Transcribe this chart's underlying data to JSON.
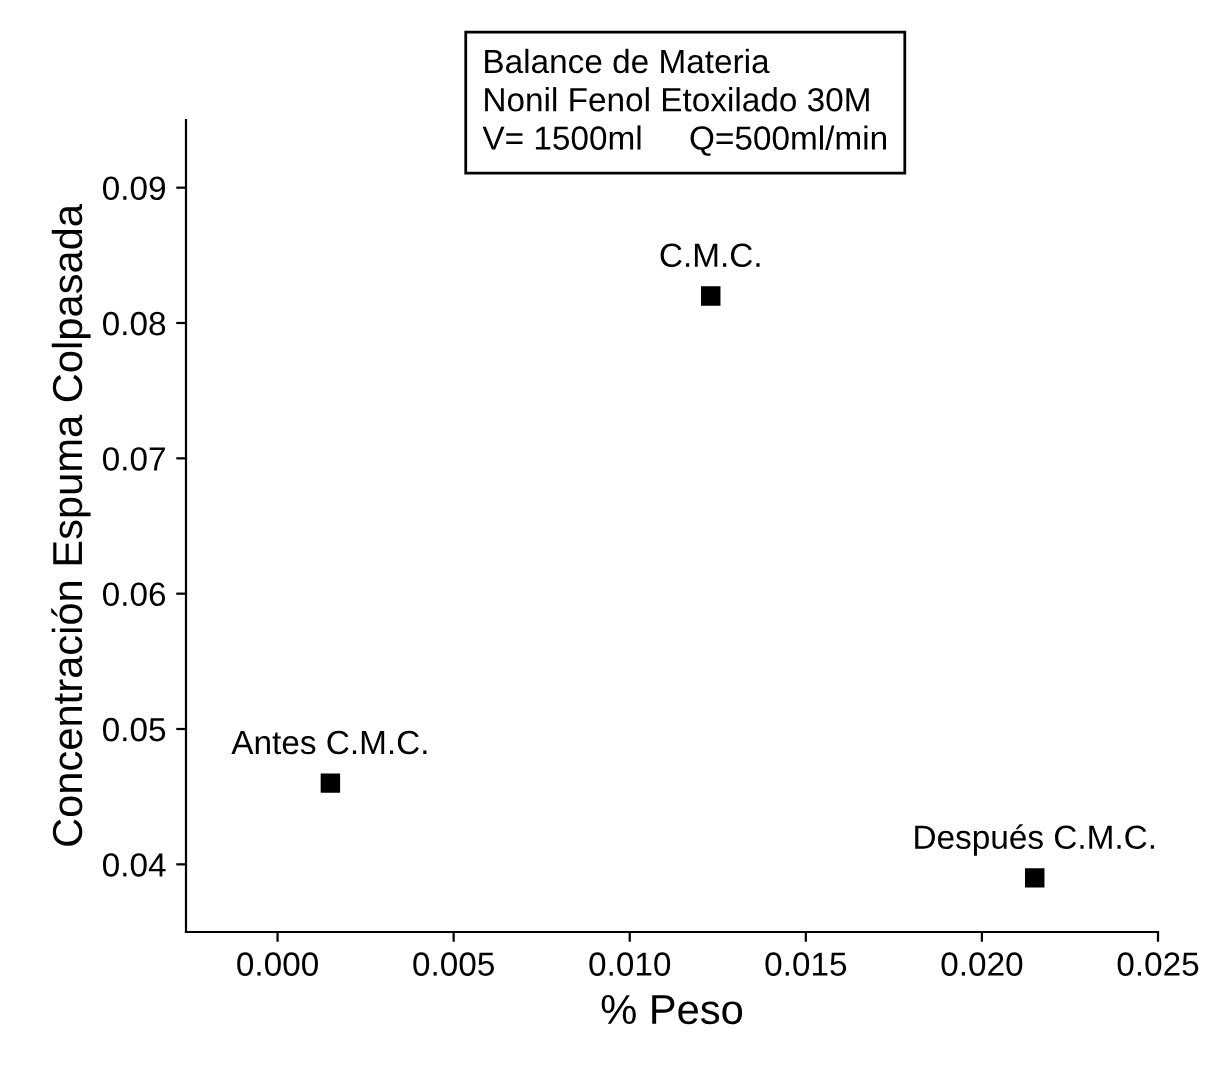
{
  "chart_data": {
    "type": "scatter",
    "xlabel": "% Peso",
    "ylabel": "Concentración Espuma Colpasada",
    "x": [
      0.0015,
      0.0123,
      0.0215
    ],
    "values": [
      0.046,
      0.082,
      0.039
    ],
    "color": "#000000",
    "marker": "square",
    "xlim": [
      -0.0026,
      0.025
    ],
    "ylim": [
      0.035,
      0.095
    ],
    "xticks": [
      {
        "value": 0.0,
        "label": "0.000"
      },
      {
        "value": 0.005,
        "label": "0.005"
      },
      {
        "value": 0.01,
        "label": "0.010"
      },
      {
        "value": 0.015,
        "label": "0.015"
      },
      {
        "value": 0.02,
        "label": "0.020"
      },
      {
        "value": 0.025,
        "label": "0.025"
      }
    ],
    "yticks": [
      0.04,
      0.05,
      0.06,
      0.07,
      0.08,
      0.09
    ],
    "grid": false,
    "legend": false,
    "annotations": [
      {
        "text": "Antes C.M.C.",
        "x": 0.0015,
        "y": 0.046
      },
      {
        "text": "C.M.C.",
        "x": 0.0123,
        "y": 0.082
      },
      {
        "text": "Después C.M.C.",
        "x": 0.0215,
        "y": 0.039
      },
      "Balance de Materia\nNonil Fenol Etoxilado 30M\nV= 1500ml     Q=500ml/min"
    ]
  }
}
